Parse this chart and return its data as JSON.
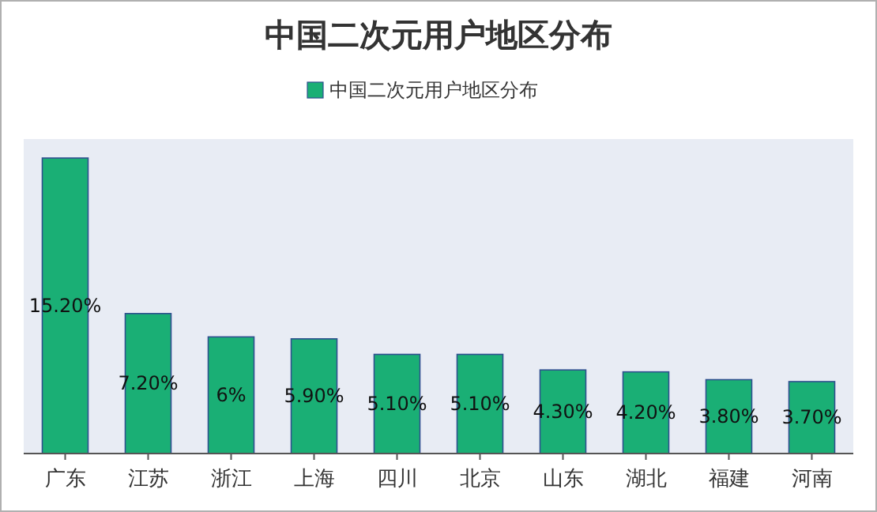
{
  "chart_data": {
    "type": "bar",
    "title": "中国二次元用户地区分布",
    "categories": [
      "广东",
      "江苏",
      "浙江",
      "上海",
      "四川",
      "北京",
      "山东",
      "湖北",
      "福建",
      "河南"
    ],
    "series": [
      {
        "name": "中国二次元用户地区分布",
        "color": "#1aaf75",
        "values": [
          15.2,
          7.2,
          6,
          5.9,
          5.1,
          5.1,
          4.3,
          4.2,
          3.8,
          3.7
        ],
        "value_labels": [
          "15.20%",
          "7.20%",
          "6%",
          "5.90%",
          "5.10%",
          "5.10%",
          "4.30%",
          "4.20%",
          "3.80%",
          "3.70%"
        ]
      }
    ],
    "legend": "top"
  }
}
